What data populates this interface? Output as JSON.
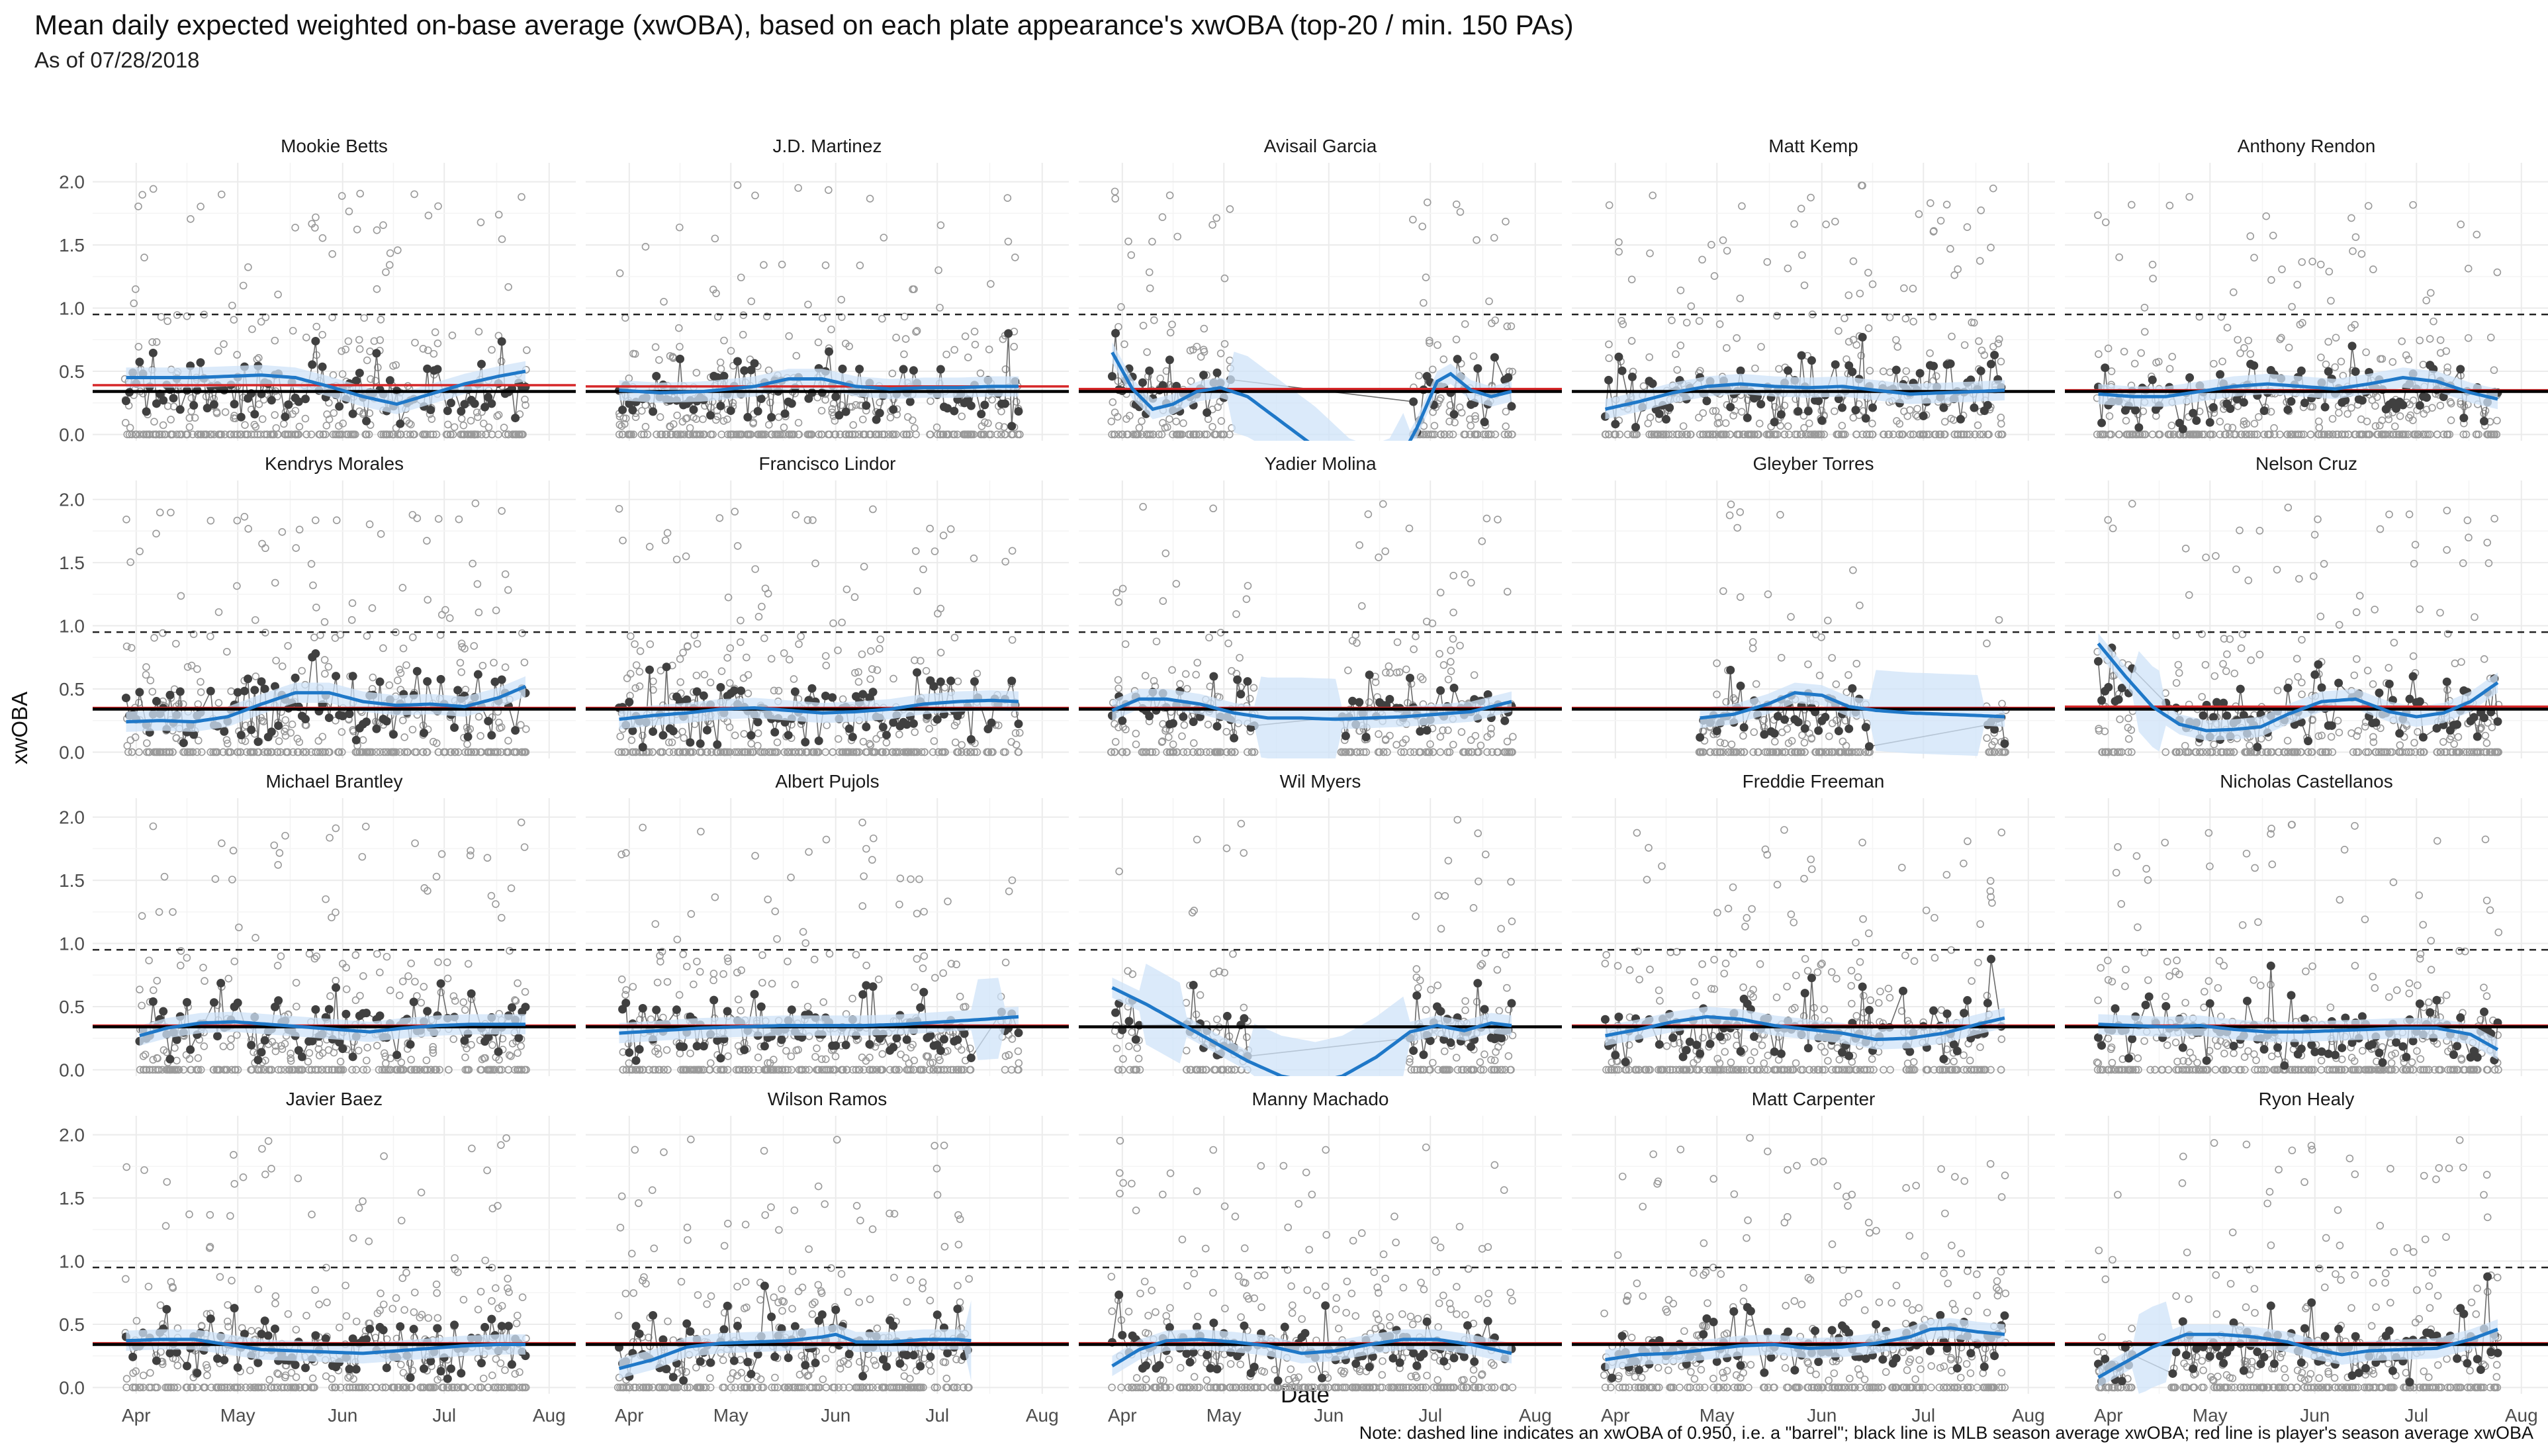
{
  "title": "Mean daily expected weighted on-base average (xwOBA), based on each plate appearance's xwOBA (top-20 / min. 150 PAs)",
  "subtitle": "As of 07/28/2018",
  "caption": "Note: dashed line indicates an xwOBA of 0.950, i.e. a \"barrel\"; black line is MLB season average xwOBA; red line is player's season average xwOBA",
  "chart_data": {
    "type": "scatter",
    "layout": "facet grid, 4 rows x 5 columns",
    "xlabel": "Date",
    "ylabel": "xwOBA",
    "x_range": [
      "2018-03-25",
      "2018-08-03"
    ],
    "x_ticks": [
      "Apr",
      "May",
      "Jun",
      "Jul",
      "Aug"
    ],
    "ylim": [
      -0.05,
      2.15
    ],
    "y_ticks": [
      "0.0",
      "0.5",
      "1.0",
      "1.5",
      "2.0"
    ],
    "barrel_line": 0.95,
    "mlb_average": 0.34,
    "grid": true,
    "colors": {
      "daily_mean": "#404040",
      "plate_appearance": "#9a9a9a",
      "smooth": "#1f78c8",
      "ribbon": "#cfe3f8",
      "league_line": "#000000",
      "player_line": "#d62728"
    },
    "panels": [
      {
        "player": "Mookie Betts",
        "player_avg": 0.39,
        "smooth": [
          [
            0,
            0.45
          ],
          [
            10,
            0.45
          ],
          [
            20,
            0.45
          ],
          [
            30,
            0.46
          ],
          [
            40,
            0.47
          ],
          [
            50,
            0.45
          ],
          [
            60,
            0.38
          ],
          [
            70,
            0.3
          ],
          [
            80,
            0.24
          ],
          [
            90,
            0.32
          ],
          [
            100,
            0.4
          ],
          [
            110,
            0.46
          ],
          [
            118,
            0.5
          ]
        ],
        "gaps": []
      },
      {
        "player": "J.D. Martinez",
        "player_avg": 0.38,
        "smooth": [
          [
            0,
            0.35
          ],
          [
            12,
            0.33
          ],
          [
            25,
            0.34
          ],
          [
            40,
            0.38
          ],
          [
            50,
            0.44
          ],
          [
            60,
            0.44
          ],
          [
            70,
            0.38
          ],
          [
            80,
            0.36
          ],
          [
            90,
            0.37
          ],
          [
            100,
            0.37
          ],
          [
            110,
            0.38
          ],
          [
            118,
            0.38
          ]
        ],
        "gaps": []
      },
      {
        "player": "Avisail Garcia",
        "player_avg": 0.36,
        "smooth": [
          [
            0,
            0.65
          ],
          [
            6,
            0.36
          ],
          [
            12,
            0.2
          ],
          [
            18,
            0.24
          ],
          [
            25,
            0.34
          ],
          [
            32,
            0.37
          ],
          [
            40,
            0.3
          ],
          [
            50,
            0.1
          ],
          [
            60,
            -0.1
          ],
          [
            70,
            -0.35
          ],
          [
            80,
            -0.45
          ],
          [
            90,
            0.05
          ],
          [
            96,
            0.42
          ],
          [
            100,
            0.48
          ],
          [
            106,
            0.35
          ],
          [
            112,
            0.3
          ],
          [
            118,
            0.34
          ]
        ],
        "gaps": [
          [
            35,
            88
          ]
        ]
      },
      {
        "player": "Matt Kemp",
        "player_avg": 0.34,
        "smooth": [
          [
            0,
            0.2
          ],
          [
            10,
            0.26
          ],
          [
            20,
            0.33
          ],
          [
            30,
            0.38
          ],
          [
            40,
            0.4
          ],
          [
            50,
            0.38
          ],
          [
            60,
            0.37
          ],
          [
            70,
            0.38
          ],
          [
            80,
            0.35
          ],
          [
            90,
            0.32
          ],
          [
            100,
            0.33
          ],
          [
            110,
            0.34
          ],
          [
            118,
            0.35
          ]
        ],
        "gaps": []
      },
      {
        "player": "Anthony Rendon",
        "player_avg": 0.35,
        "smooth": [
          [
            0,
            0.32
          ],
          [
            10,
            0.3
          ],
          [
            20,
            0.3
          ],
          [
            30,
            0.34
          ],
          [
            40,
            0.38
          ],
          [
            50,
            0.4
          ],
          [
            60,
            0.38
          ],
          [
            70,
            0.36
          ],
          [
            80,
            0.4
          ],
          [
            90,
            0.45
          ],
          [
            100,
            0.42
          ],
          [
            110,
            0.33
          ],
          [
            118,
            0.28
          ]
        ],
        "gaps": []
      },
      {
        "player": "Kendrys Morales",
        "player_avg": 0.35,
        "smooth": [
          [
            0,
            0.24
          ],
          [
            10,
            0.25
          ],
          [
            20,
            0.24
          ],
          [
            30,
            0.28
          ],
          [
            40,
            0.38
          ],
          [
            50,
            0.47
          ],
          [
            60,
            0.47
          ],
          [
            70,
            0.4
          ],
          [
            80,
            0.37
          ],
          [
            90,
            0.38
          ],
          [
            100,
            0.36
          ],
          [
            110,
            0.43
          ],
          [
            118,
            0.52
          ]
        ],
        "gaps": []
      },
      {
        "player": "Francisco Lindor",
        "player_avg": 0.35,
        "smooth": [
          [
            0,
            0.26
          ],
          [
            10,
            0.29
          ],
          [
            20,
            0.31
          ],
          [
            30,
            0.34
          ],
          [
            40,
            0.35
          ],
          [
            50,
            0.33
          ],
          [
            60,
            0.31
          ],
          [
            70,
            0.32
          ],
          [
            80,
            0.34
          ],
          [
            90,
            0.38
          ],
          [
            100,
            0.4
          ],
          [
            110,
            0.41
          ],
          [
            118,
            0.4
          ]
        ],
        "gaps": []
      },
      {
        "player": "Yadier Molina",
        "player_avg": 0.35,
        "smooth": [
          [
            0,
            0.33
          ],
          [
            8,
            0.42
          ],
          [
            16,
            0.42
          ],
          [
            26,
            0.38
          ],
          [
            36,
            0.31
          ],
          [
            46,
            0.27
          ],
          [
            56,
            0.27
          ],
          [
            66,
            0.26
          ],
          [
            76,
            0.27
          ],
          [
            86,
            0.28
          ],
          [
            96,
            0.3
          ],
          [
            106,
            0.32
          ],
          [
            118,
            0.4
          ]
        ],
        "gaps": [
          [
            42,
            68
          ]
        ]
      },
      {
        "player": "Gleyber Torres",
        "player_avg": 0.35,
        "smooth": [
          [
            28,
            0.27
          ],
          [
            38,
            0.3
          ],
          [
            48,
            0.38
          ],
          [
            56,
            0.47
          ],
          [
            64,
            0.45
          ],
          [
            72,
            0.36
          ],
          [
            80,
            0.33
          ],
          [
            90,
            0.31
          ],
          [
            100,
            0.3
          ],
          [
            110,
            0.29
          ],
          [
            118,
            0.28
          ]
        ],
        "gaps": [
          [
            78,
            112
          ]
        ]
      },
      {
        "player": "Nelson Cruz",
        "player_avg": 0.36,
        "smooth": [
          [
            0,
            0.86
          ],
          [
            8,
            0.6
          ],
          [
            16,
            0.36
          ],
          [
            24,
            0.22
          ],
          [
            32,
            0.17
          ],
          [
            40,
            0.18
          ],
          [
            48,
            0.2
          ],
          [
            56,
            0.3
          ],
          [
            66,
            0.4
          ],
          [
            76,
            0.42
          ],
          [
            86,
            0.32
          ],
          [
            94,
            0.28
          ],
          [
            102,
            0.31
          ],
          [
            110,
            0.4
          ],
          [
            118,
            0.55
          ]
        ],
        "gaps": [
          [
            10,
            20
          ]
        ]
      },
      {
        "player": "Michael Brantley",
        "player_avg": 0.35,
        "smooth": [
          [
            4,
            0.27
          ],
          [
            12,
            0.33
          ],
          [
            22,
            0.37
          ],
          [
            32,
            0.38
          ],
          [
            42,
            0.36
          ],
          [
            52,
            0.34
          ],
          [
            62,
            0.32
          ],
          [
            72,
            0.3
          ],
          [
            82,
            0.33
          ],
          [
            92,
            0.35
          ],
          [
            102,
            0.36
          ],
          [
            112,
            0.36
          ],
          [
            118,
            0.36
          ]
        ],
        "gaps": []
      },
      {
        "player": "Albert Pujols",
        "player_avg": 0.35,
        "smooth": [
          [
            0,
            0.29
          ],
          [
            12,
            0.31
          ],
          [
            24,
            0.33
          ],
          [
            36,
            0.34
          ],
          [
            48,
            0.35
          ],
          [
            60,
            0.35
          ],
          [
            72,
            0.35
          ],
          [
            84,
            0.36
          ],
          [
            96,
            0.38
          ],
          [
            108,
            0.4
          ],
          [
            118,
            0.42
          ]
        ],
        "gaps": [
          [
            105,
            113
          ]
        ]
      },
      {
        "player": "Wil Myers",
        "player_avg": 0.34,
        "smooth": [
          [
            0,
            0.65
          ],
          [
            10,
            0.52
          ],
          [
            20,
            0.37
          ],
          [
            30,
            0.22
          ],
          [
            40,
            0.07
          ],
          [
            50,
            -0.05
          ],
          [
            60,
            -0.1
          ],
          [
            68,
            -0.05
          ],
          [
            78,
            0.1
          ],
          [
            88,
            0.3
          ],
          [
            96,
            0.35
          ],
          [
            104,
            0.31
          ],
          [
            112,
            0.37
          ],
          [
            118,
            0.35
          ]
        ],
        "gaps": [
          [
            8,
            22
          ],
          [
            40,
            88
          ]
        ]
      },
      {
        "player": "Freddie Freeman",
        "player_avg": 0.35,
        "smooth": [
          [
            0,
            0.27
          ],
          [
            10,
            0.32
          ],
          [
            20,
            0.38
          ],
          [
            30,
            0.42
          ],
          [
            40,
            0.4
          ],
          [
            50,
            0.35
          ],
          [
            60,
            0.32
          ],
          [
            70,
            0.29
          ],
          [
            80,
            0.24
          ],
          [
            90,
            0.25
          ],
          [
            100,
            0.29
          ],
          [
            110,
            0.36
          ],
          [
            118,
            0.41
          ]
        ],
        "gaps": []
      },
      {
        "player": "Nicholas Castellanos",
        "player_avg": 0.35,
        "smooth": [
          [
            0,
            0.36
          ],
          [
            10,
            0.35
          ],
          [
            20,
            0.34
          ],
          [
            30,
            0.35
          ],
          [
            40,
            0.32
          ],
          [
            50,
            0.3
          ],
          [
            60,
            0.3
          ],
          [
            70,
            0.31
          ],
          [
            80,
            0.32
          ],
          [
            90,
            0.33
          ],
          [
            100,
            0.33
          ],
          [
            110,
            0.28
          ],
          [
            118,
            0.16
          ]
        ],
        "gaps": []
      },
      {
        "player": "Javier Baez",
        "player_avg": 0.35,
        "smooth": [
          [
            0,
            0.37
          ],
          [
            10,
            0.38
          ],
          [
            20,
            0.38
          ],
          [
            30,
            0.34
          ],
          [
            40,
            0.3
          ],
          [
            50,
            0.29
          ],
          [
            60,
            0.28
          ],
          [
            70,
            0.27
          ],
          [
            80,
            0.29
          ],
          [
            90,
            0.31
          ],
          [
            100,
            0.33
          ],
          [
            110,
            0.34
          ],
          [
            118,
            0.34
          ]
        ],
        "gaps": []
      },
      {
        "player": "Wilson Ramos",
        "player_avg": 0.35,
        "smooth": [
          [
            0,
            0.15
          ],
          [
            10,
            0.22
          ],
          [
            20,
            0.32
          ],
          [
            30,
            0.35
          ],
          [
            40,
            0.36
          ],
          [
            50,
            0.37
          ],
          [
            60,
            0.4
          ],
          [
            64,
            0.42
          ],
          [
            70,
            0.36
          ],
          [
            80,
            0.36
          ],
          [
            90,
            0.38
          ],
          [
            100,
            0.38
          ],
          [
            104,
            0.37
          ]
        ],
        "gaps": [
          [
            103,
            118
          ]
        ]
      },
      {
        "player": "Manny Machado",
        "player_avg": 0.35,
        "smooth": [
          [
            0,
            0.17
          ],
          [
            8,
            0.3
          ],
          [
            16,
            0.37
          ],
          [
            26,
            0.38
          ],
          [
            36,
            0.36
          ],
          [
            46,
            0.33
          ],
          [
            56,
            0.27
          ],
          [
            66,
            0.29
          ],
          [
            76,
            0.34
          ],
          [
            86,
            0.38
          ],
          [
            96,
            0.38
          ],
          [
            106,
            0.34
          ],
          [
            118,
            0.27
          ]
        ],
        "gaps": []
      },
      {
        "player": "Matt Carpenter",
        "player_avg": 0.35,
        "smooth": [
          [
            0,
            0.22
          ],
          [
            10,
            0.26
          ],
          [
            20,
            0.27
          ],
          [
            30,
            0.3
          ],
          [
            40,
            0.33
          ],
          [
            50,
            0.34
          ],
          [
            60,
            0.31
          ],
          [
            70,
            0.32
          ],
          [
            80,
            0.35
          ],
          [
            90,
            0.4
          ],
          [
            96,
            0.46
          ],
          [
            102,
            0.47
          ],
          [
            110,
            0.44
          ],
          [
            118,
            0.42
          ]
        ],
        "gaps": []
      },
      {
        "player": "Ryon Healy",
        "player_avg": 0.35,
        "smooth": [
          [
            0,
            0.08
          ],
          [
            8,
            0.2
          ],
          [
            16,
            0.32
          ],
          [
            26,
            0.42
          ],
          [
            36,
            0.42
          ],
          [
            46,
            0.4
          ],
          [
            56,
            0.36
          ],
          [
            64,
            0.3
          ],
          [
            72,
            0.26
          ],
          [
            80,
            0.29
          ],
          [
            90,
            0.3
          ],
          [
            100,
            0.31
          ],
          [
            110,
            0.38
          ],
          [
            118,
            0.46
          ]
        ],
        "gaps": [
          [
            10,
            22
          ]
        ]
      }
    ]
  }
}
